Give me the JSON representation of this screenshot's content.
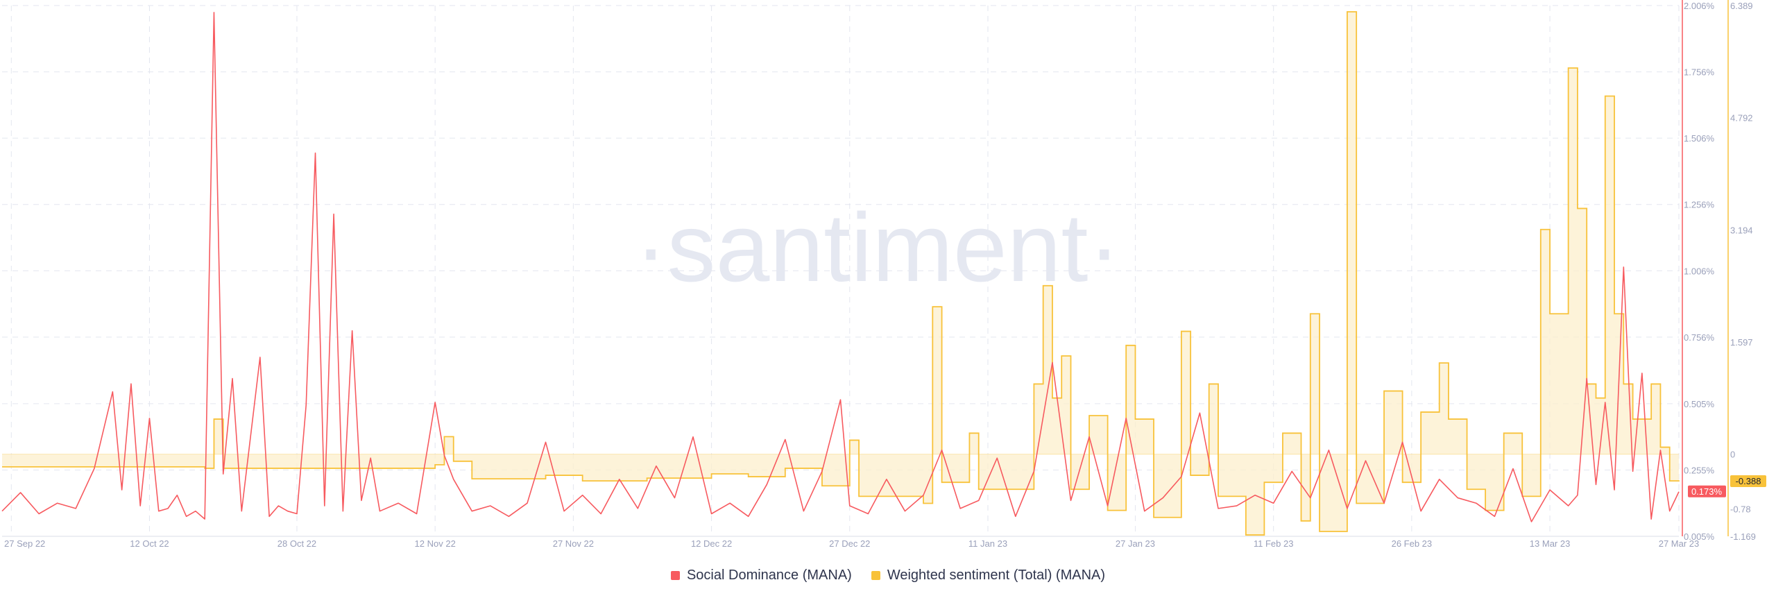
{
  "watermark": "·santiment·",
  "colors": {
    "social": "#f75a5f",
    "sentiment": "#f8c23a",
    "sentiment_fill": "#fcefcc",
    "axis_text": "#9aa0ba",
    "grid": "#e3e6ef",
    "watermark": "#e5e8f1"
  },
  "chart_data": {
    "type": "line",
    "x_range": [
      "2022-09-26",
      "2023-03-27"
    ],
    "x_ticks": [
      "27 Sep 22",
      "12 Oct 22",
      "28 Oct 22",
      "12 Nov 22",
      "27 Nov 22",
      "12 Dec 22",
      "27 Dec 22",
      "11 Jan 23",
      "27 Jan 23",
      "11 Feb 23",
      "26 Feb 23",
      "13 Mar 23",
      "27 Mar 23"
    ],
    "y_left": {
      "series": "Social Dominance (MANA)",
      "range": [
        0.005,
        2.006
      ],
      "ticks": [
        "2.006%",
        "1.756%",
        "1.506%",
        "1.256%",
        "1.006%",
        "0.756%",
        "0.505%",
        "0.255%",
        "0.005%"
      ],
      "current_label": "0.173%"
    },
    "y_right": {
      "series": "Weighted sentiment (Total) (MANA)",
      "range": [
        -1.169,
        6.389
      ],
      "ticks": [
        "6.389",
        "4.792",
        "3.194",
        "1.597",
        "0",
        "-0.78",
        "-1.169"
      ],
      "current_label": "-0.388"
    },
    "series": [
      {
        "name": "Social Dominance (MANA)",
        "color": "#f75a5f",
        "points": [
          [
            "2022-09-26",
            0.1
          ],
          [
            "2022-09-28",
            0.17
          ],
          [
            "2022-09-30",
            0.09
          ],
          [
            "2022-10-02",
            0.13
          ],
          [
            "2022-10-04",
            0.11
          ],
          [
            "2022-10-06",
            0.26
          ],
          [
            "2022-10-08",
            0.55
          ],
          [
            "2022-10-09",
            0.18
          ],
          [
            "2022-10-10",
            0.58
          ],
          [
            "2022-10-11",
            0.12
          ],
          [
            "2022-10-12",
            0.45
          ],
          [
            "2022-10-13",
            0.1
          ],
          [
            "2022-10-14",
            0.11
          ],
          [
            "2022-10-15",
            0.16
          ],
          [
            "2022-10-16",
            0.08
          ],
          [
            "2022-10-17",
            0.1
          ],
          [
            "2022-10-18",
            0.07
          ],
          [
            "2022-10-19",
            1.98
          ],
          [
            "2022-10-20",
            0.24
          ],
          [
            "2022-10-21",
            0.6
          ],
          [
            "2022-10-22",
            0.1
          ],
          [
            "2022-10-24",
            0.68
          ],
          [
            "2022-10-25",
            0.08
          ],
          [
            "2022-10-26",
            0.12
          ],
          [
            "2022-10-27",
            0.1
          ],
          [
            "2022-10-28",
            0.09
          ],
          [
            "2022-10-29",
            0.5
          ],
          [
            "2022-10-30",
            1.45
          ],
          [
            "2022-10-31",
            0.12
          ],
          [
            "2022-11-01",
            1.22
          ],
          [
            "2022-11-02",
            0.1
          ],
          [
            "2022-11-03",
            0.78
          ],
          [
            "2022-11-04",
            0.14
          ],
          [
            "2022-11-05",
            0.3
          ],
          [
            "2022-11-06",
            0.1
          ],
          [
            "2022-11-08",
            0.13
          ],
          [
            "2022-11-10",
            0.09
          ],
          [
            "2022-11-12",
            0.51
          ],
          [
            "2022-11-13",
            0.31
          ],
          [
            "2022-11-14",
            0.22
          ],
          [
            "2022-11-16",
            0.1
          ],
          [
            "2022-11-18",
            0.12
          ],
          [
            "2022-11-20",
            0.08
          ],
          [
            "2022-11-22",
            0.13
          ],
          [
            "2022-11-24",
            0.36
          ],
          [
            "2022-11-26",
            0.1
          ],
          [
            "2022-11-28",
            0.16
          ],
          [
            "2022-11-30",
            0.09
          ],
          [
            "2022-12-02",
            0.22
          ],
          [
            "2022-12-04",
            0.11
          ],
          [
            "2022-12-06",
            0.27
          ],
          [
            "2022-12-08",
            0.15
          ],
          [
            "2022-12-10",
            0.38
          ],
          [
            "2022-12-12",
            0.09
          ],
          [
            "2022-12-14",
            0.13
          ],
          [
            "2022-12-16",
            0.08
          ],
          [
            "2022-12-18",
            0.2
          ],
          [
            "2022-12-20",
            0.37
          ],
          [
            "2022-12-22",
            0.1
          ],
          [
            "2022-12-24",
            0.25
          ],
          [
            "2022-12-26",
            0.52
          ],
          [
            "2022-12-27",
            0.12
          ],
          [
            "2022-12-29",
            0.09
          ],
          [
            "2022-12-31",
            0.22
          ],
          [
            "2023-01-02",
            0.1
          ],
          [
            "2023-01-04",
            0.16
          ],
          [
            "2023-01-06",
            0.33
          ],
          [
            "2023-01-08",
            0.11
          ],
          [
            "2023-01-10",
            0.14
          ],
          [
            "2023-01-12",
            0.3
          ],
          [
            "2023-01-14",
            0.08
          ],
          [
            "2023-01-16",
            0.25
          ],
          [
            "2023-01-18",
            0.66
          ],
          [
            "2023-01-20",
            0.14
          ],
          [
            "2023-01-22",
            0.38
          ],
          [
            "2023-01-24",
            0.12
          ],
          [
            "2023-01-26",
            0.45
          ],
          [
            "2023-01-28",
            0.1
          ],
          [
            "2023-01-30",
            0.15
          ],
          [
            "2023-02-01",
            0.23
          ],
          [
            "2023-02-03",
            0.47
          ],
          [
            "2023-02-05",
            0.11
          ],
          [
            "2023-02-07",
            0.12
          ],
          [
            "2023-02-09",
            0.16
          ],
          [
            "2023-02-11",
            0.13
          ],
          [
            "2023-02-13",
            0.25
          ],
          [
            "2023-02-15",
            0.15
          ],
          [
            "2023-02-17",
            0.33
          ],
          [
            "2023-02-19",
            0.11
          ],
          [
            "2023-02-21",
            0.29
          ],
          [
            "2023-02-23",
            0.13
          ],
          [
            "2023-02-25",
            0.36
          ],
          [
            "2023-02-27",
            0.1
          ],
          [
            "2023-03-01",
            0.22
          ],
          [
            "2023-03-03",
            0.15
          ],
          [
            "2023-03-05",
            0.13
          ],
          [
            "2023-03-07",
            0.08
          ],
          [
            "2023-03-09",
            0.26
          ],
          [
            "2023-03-11",
            0.06
          ],
          [
            "2023-03-13",
            0.18
          ],
          [
            "2023-03-15",
            0.12
          ],
          [
            "2023-03-16",
            0.16
          ],
          [
            "2023-03-17",
            0.6
          ],
          [
            "2023-03-18",
            0.2
          ],
          [
            "2023-03-19",
            0.51
          ],
          [
            "2023-03-20",
            0.18
          ],
          [
            "2023-03-21",
            1.02
          ],
          [
            "2023-03-22",
            0.25
          ],
          [
            "2023-03-23",
            0.62
          ],
          [
            "2023-03-24",
            0.07
          ],
          [
            "2023-03-25",
            0.33
          ],
          [
            "2023-03-26",
            0.1
          ],
          [
            "2023-03-27",
            0.173
          ]
        ]
      },
      {
        "name": "Weighted sentiment (Total) (MANA)",
        "color": "#f8c23a",
        "points": [
          [
            "2022-09-26",
            -0.18
          ],
          [
            "2022-10-18",
            -0.2
          ],
          [
            "2022-10-19",
            0.5
          ],
          [
            "2022-10-20",
            -0.2
          ],
          [
            "2022-11-12",
            -0.15
          ],
          [
            "2022-11-13",
            0.25
          ],
          [
            "2022-11-14",
            -0.1
          ],
          [
            "2022-11-16",
            -0.35
          ],
          [
            "2022-11-24",
            -0.3
          ],
          [
            "2022-11-28",
            -0.38
          ],
          [
            "2022-12-05",
            -0.34
          ],
          [
            "2022-12-12",
            -0.28
          ],
          [
            "2022-12-16",
            -0.32
          ],
          [
            "2022-12-20",
            -0.2
          ],
          [
            "2022-12-24",
            -0.45
          ],
          [
            "2022-12-27",
            0.2
          ],
          [
            "2022-12-28",
            -0.6
          ],
          [
            "2023-01-04",
            -0.7
          ],
          [
            "2023-01-05",
            2.1
          ],
          [
            "2023-01-06",
            -0.4
          ],
          [
            "2023-01-09",
            0.3
          ],
          [
            "2023-01-10",
            -0.5
          ],
          [
            "2023-01-16",
            1.0
          ],
          [
            "2023-01-17",
            2.4
          ],
          [
            "2023-01-18",
            0.8
          ],
          [
            "2023-01-19",
            1.4
          ],
          [
            "2023-01-20",
            -0.5
          ],
          [
            "2023-01-22",
            0.55
          ],
          [
            "2023-01-24",
            -0.8
          ],
          [
            "2023-01-26",
            1.55
          ],
          [
            "2023-01-27",
            0.5
          ],
          [
            "2023-01-29",
            -0.9
          ],
          [
            "2023-02-01",
            1.75
          ],
          [
            "2023-02-02",
            -0.3
          ],
          [
            "2023-02-04",
            1.0
          ],
          [
            "2023-02-05",
            -0.6
          ],
          [
            "2023-02-08",
            -1.15
          ],
          [
            "2023-02-10",
            -0.4
          ],
          [
            "2023-02-12",
            0.3
          ],
          [
            "2023-02-14",
            -0.95
          ],
          [
            "2023-02-15",
            2.0
          ],
          [
            "2023-02-16",
            -1.1
          ],
          [
            "2023-02-19",
            6.3
          ],
          [
            "2023-02-20",
            -0.7
          ],
          [
            "2023-02-23",
            0.9
          ],
          [
            "2023-02-25",
            -0.4
          ],
          [
            "2023-02-27",
            0.6
          ],
          [
            "2023-03-01",
            1.3
          ],
          [
            "2023-03-02",
            0.5
          ],
          [
            "2023-03-04",
            -0.5
          ],
          [
            "2023-03-06",
            -0.8
          ],
          [
            "2023-03-08",
            0.3
          ],
          [
            "2023-03-10",
            -0.6
          ],
          [
            "2023-03-12",
            3.2
          ],
          [
            "2023-03-13",
            2.0
          ],
          [
            "2023-03-15",
            5.5
          ],
          [
            "2023-03-16",
            3.5
          ],
          [
            "2023-03-17",
            1.0
          ],
          [
            "2023-03-18",
            0.8
          ],
          [
            "2023-03-19",
            5.1
          ],
          [
            "2023-03-20",
            2.0
          ],
          [
            "2023-03-21",
            1.0
          ],
          [
            "2023-03-22",
            0.5
          ],
          [
            "2023-03-24",
            1.0
          ],
          [
            "2023-03-25",
            0.1
          ],
          [
            "2023-03-26",
            -0.38
          ],
          [
            "2023-03-27",
            -0.388
          ]
        ]
      }
    ],
    "legend": [
      "Social Dominance (MANA)",
      "Weighted sentiment (Total) (MANA)"
    ],
    "legend_position": "bottom-center",
    "grid": true
  }
}
